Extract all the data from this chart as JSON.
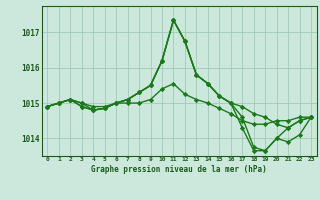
{
  "hours": [
    0,
    1,
    2,
    3,
    4,
    5,
    6,
    7,
    8,
    9,
    10,
    11,
    12,
    13,
    14,
    15,
    16,
    17,
    18,
    19,
    20,
    21,
    22,
    23
  ],
  "series": [
    [
      1014.9,
      1015.0,
      1015.1,
      1015.0,
      1014.9,
      1014.9,
      1015.0,
      1015.1,
      1015.3,
      1015.5,
      1016.2,
      1017.35,
      1016.75,
      1015.8,
      1015.55,
      1015.2,
      1015.0,
      1014.9,
      1014.7,
      1014.6,
      1014.4,
      1014.3,
      1014.5,
      1014.6
    ],
    [
      1014.9,
      1015.0,
      1015.1,
      1015.0,
      1014.8,
      1014.85,
      1015.0,
      1015.1,
      1015.3,
      1015.5,
      1016.2,
      1017.35,
      1016.75,
      1015.8,
      1015.55,
      1015.2,
      1015.0,
      1014.6,
      1013.75,
      1013.65,
      1014.0,
      1014.3,
      1014.5,
      1014.6
    ],
    [
      1014.9,
      1015.0,
      1015.1,
      1014.9,
      1014.8,
      1014.85,
      1015.0,
      1015.0,
      1015.0,
      1015.1,
      1015.4,
      1015.55,
      1015.25,
      1015.1,
      1015.0,
      1014.85,
      1014.7,
      1014.5,
      1014.4,
      1014.4,
      1014.5,
      1014.5,
      1014.6,
      1014.6
    ],
    [
      1014.9,
      1015.0,
      1015.1,
      1014.9,
      1014.8,
      1014.85,
      1015.0,
      1015.1,
      1015.3,
      1015.5,
      1016.2,
      1017.35,
      1016.75,
      1015.8,
      1015.55,
      1015.2,
      1015.0,
      1014.3,
      1013.65,
      1013.65,
      1014.0,
      1013.9,
      1014.1,
      1014.6
    ]
  ],
  "line_color": "#1a7a1a",
  "bg_color": "#cce8dc",
  "label_bg_color": "#b8d8c8",
  "grid_color": "#99c4b0",
  "text_color": "#1a5a1a",
  "ylim": [
    1013.5,
    1017.75
  ],
  "xlabel": "Graphe pression niveau de la mer (hPa)",
  "marker": "D",
  "marker_size": 2.2,
  "linewidth": 1.0,
  "fig_width": 3.2,
  "fig_height": 2.0,
  "dpi": 100
}
